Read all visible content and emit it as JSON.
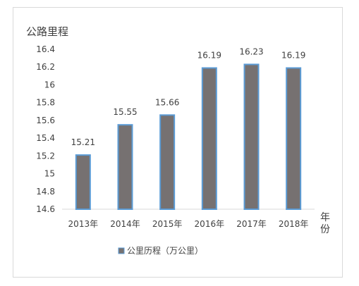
{
  "chart_data": {
    "type": "bar",
    "ylabel": "公路里程",
    "xlabel": "年份",
    "categories": [
      "2013年",
      "2014年",
      "2015年",
      "2016年",
      "2017年",
      "2018年"
    ],
    "series": [
      {
        "name": "公里历程（万公里）",
        "values": [
          15.21,
          15.55,
          15.66,
          16.19,
          16.23,
          16.19
        ],
        "data_labels": [
          "15.21",
          "15.55",
          "15.66",
          "16.19",
          "16.23",
          "16.19"
        ],
        "color": "#767171",
        "border_color": "#5b9bd5"
      }
    ],
    "ylim": [
      14.6,
      16.4
    ],
    "yticks": [
      14.6,
      14.8,
      15,
      15.2,
      15.4,
      15.6,
      15.8,
      16,
      16.2,
      16.4
    ],
    "ytick_labels": [
      "14.6",
      "14.8",
      "15",
      "15.2",
      "15.4",
      "15.6",
      "15.8",
      "16",
      "16.2",
      "16.4"
    ],
    "grid": false,
    "legend_position": "bottom"
  }
}
